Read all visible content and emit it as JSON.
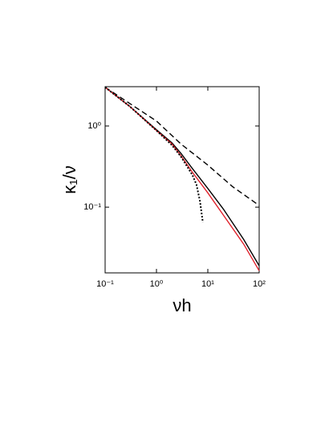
{
  "chart_data": {
    "type": "line",
    "x_label": "νh",
    "y_label": "κ₁/ν",
    "log_x": true,
    "log_y": true,
    "xlim": [
      0.1,
      100
    ],
    "ylim": [
      0.0155,
      3.05
    ],
    "xticks": [
      {
        "value": 0.1,
        "label": "10⁻¹"
      },
      {
        "value": 1,
        "label": "10⁰"
      },
      {
        "value": 10,
        "label": "10¹"
      },
      {
        "value": 100,
        "label": "10²"
      }
    ],
    "yticks": [
      {
        "value": 0.1,
        "label": "10⁻¹"
      },
      {
        "value": 1,
        "label": "10⁰"
      }
    ],
    "series": [
      {
        "color": "#000000",
        "dash": "dashed",
        "x": [
          0.1,
          0.3,
          1,
          3,
          10,
          30,
          100
        ],
        "values": [
          3.0,
          1.9,
          1.15,
          0.6,
          0.33,
          0.18,
          0.105
        ]
      },
      {
        "color": "#000000",
        "dash": "solid",
        "x": [
          0.1,
          0.3,
          1,
          2,
          3,
          5,
          10,
          20,
          50,
          100
        ],
        "values": [
          3.0,
          1.75,
          0.9,
          0.62,
          0.46,
          0.3,
          0.17,
          0.095,
          0.04,
          0.019
        ]
      },
      {
        "color": "#e0202a",
        "dash": "solid",
        "x": [
          0.1,
          0.3,
          1,
          2,
          3,
          5,
          10,
          20,
          50,
          100
        ],
        "values": [
          3.0,
          1.75,
          0.88,
          0.6,
          0.43,
          0.27,
          0.15,
          0.08,
          0.035,
          0.0165
        ]
      },
      {
        "color": "#000000",
        "dash": "dotted",
        "x": [
          0.1,
          0.3,
          1,
          2,
          3,
          5,
          6,
          7,
          8
        ],
        "values": [
          3.0,
          1.75,
          0.88,
          0.58,
          0.42,
          0.25,
          0.19,
          0.12,
          0.065
        ]
      }
    ]
  }
}
